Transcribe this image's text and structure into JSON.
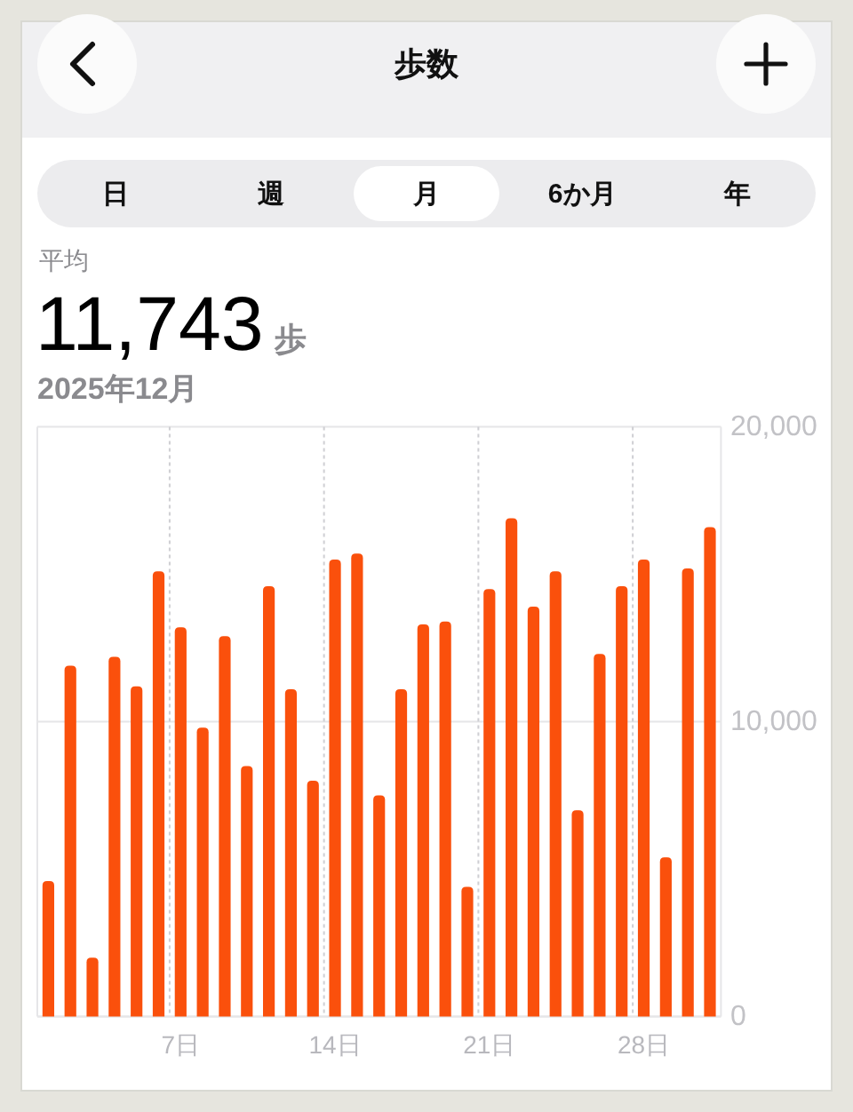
{
  "chart_data": {
    "type": "bar",
    "title": "歩数",
    "subtitle": "2025年12月",
    "annotations": [
      "日",
      "週",
      "月",
      "6か月",
      "年",
      "平均",
      "11,743",
      "歩"
    ],
    "x": [
      1,
      2,
      3,
      4,
      5,
      6,
      7,
      8,
      9,
      10,
      11,
      12,
      13,
      14,
      15,
      16,
      17,
      18,
      19,
      20,
      21,
      22,
      23,
      24,
      25,
      26,
      27,
      28,
      29,
      30,
      31
    ],
    "values": [
      4600,
      11900,
      2000,
      12200,
      11200,
      15100,
      13200,
      9800,
      12900,
      8500,
      14600,
      11100,
      8000,
      15500,
      15700,
      7500,
      11100,
      13300,
      13400,
      4400,
      14500,
      16900,
      13900,
      15100,
      7000,
      12300,
      14600,
      15500,
      5400,
      15200,
      16600
    ],
    "color": "#fa500c",
    "xlim": [
      0.5,
      31.5
    ],
    "xticks": [
      {
        "value": 7,
        "label": "7日"
      },
      {
        "value": 14,
        "label": "14日"
      },
      {
        "value": 21,
        "label": "21日"
      },
      {
        "value": 28,
        "label": "28日"
      }
    ],
    "ylim": [
      0,
      20000
    ],
    "yticks": [
      0,
      {
        "value": 10000,
        "label": "10,000"
      },
      {
        "value": 20000,
        "label": "20,000"
      }
    ],
    "grid": "y",
    "ref_lines": [
      {
        "axis": "x",
        "value": 6.5,
        "color": "#cfcfd3",
        "line_style": "dashed"
      },
      {
        "axis": "x",
        "value": 13.5,
        "color": "#cfcfd3",
        "line_style": "dashed"
      },
      {
        "axis": "x",
        "value": 20.5,
        "color": "#cfcfd3",
        "line_style": "dashed"
      },
      {
        "axis": "x",
        "value": 27.5,
        "color": "#cfcfd3",
        "line_style": "dashed"
      }
    ]
  }
}
